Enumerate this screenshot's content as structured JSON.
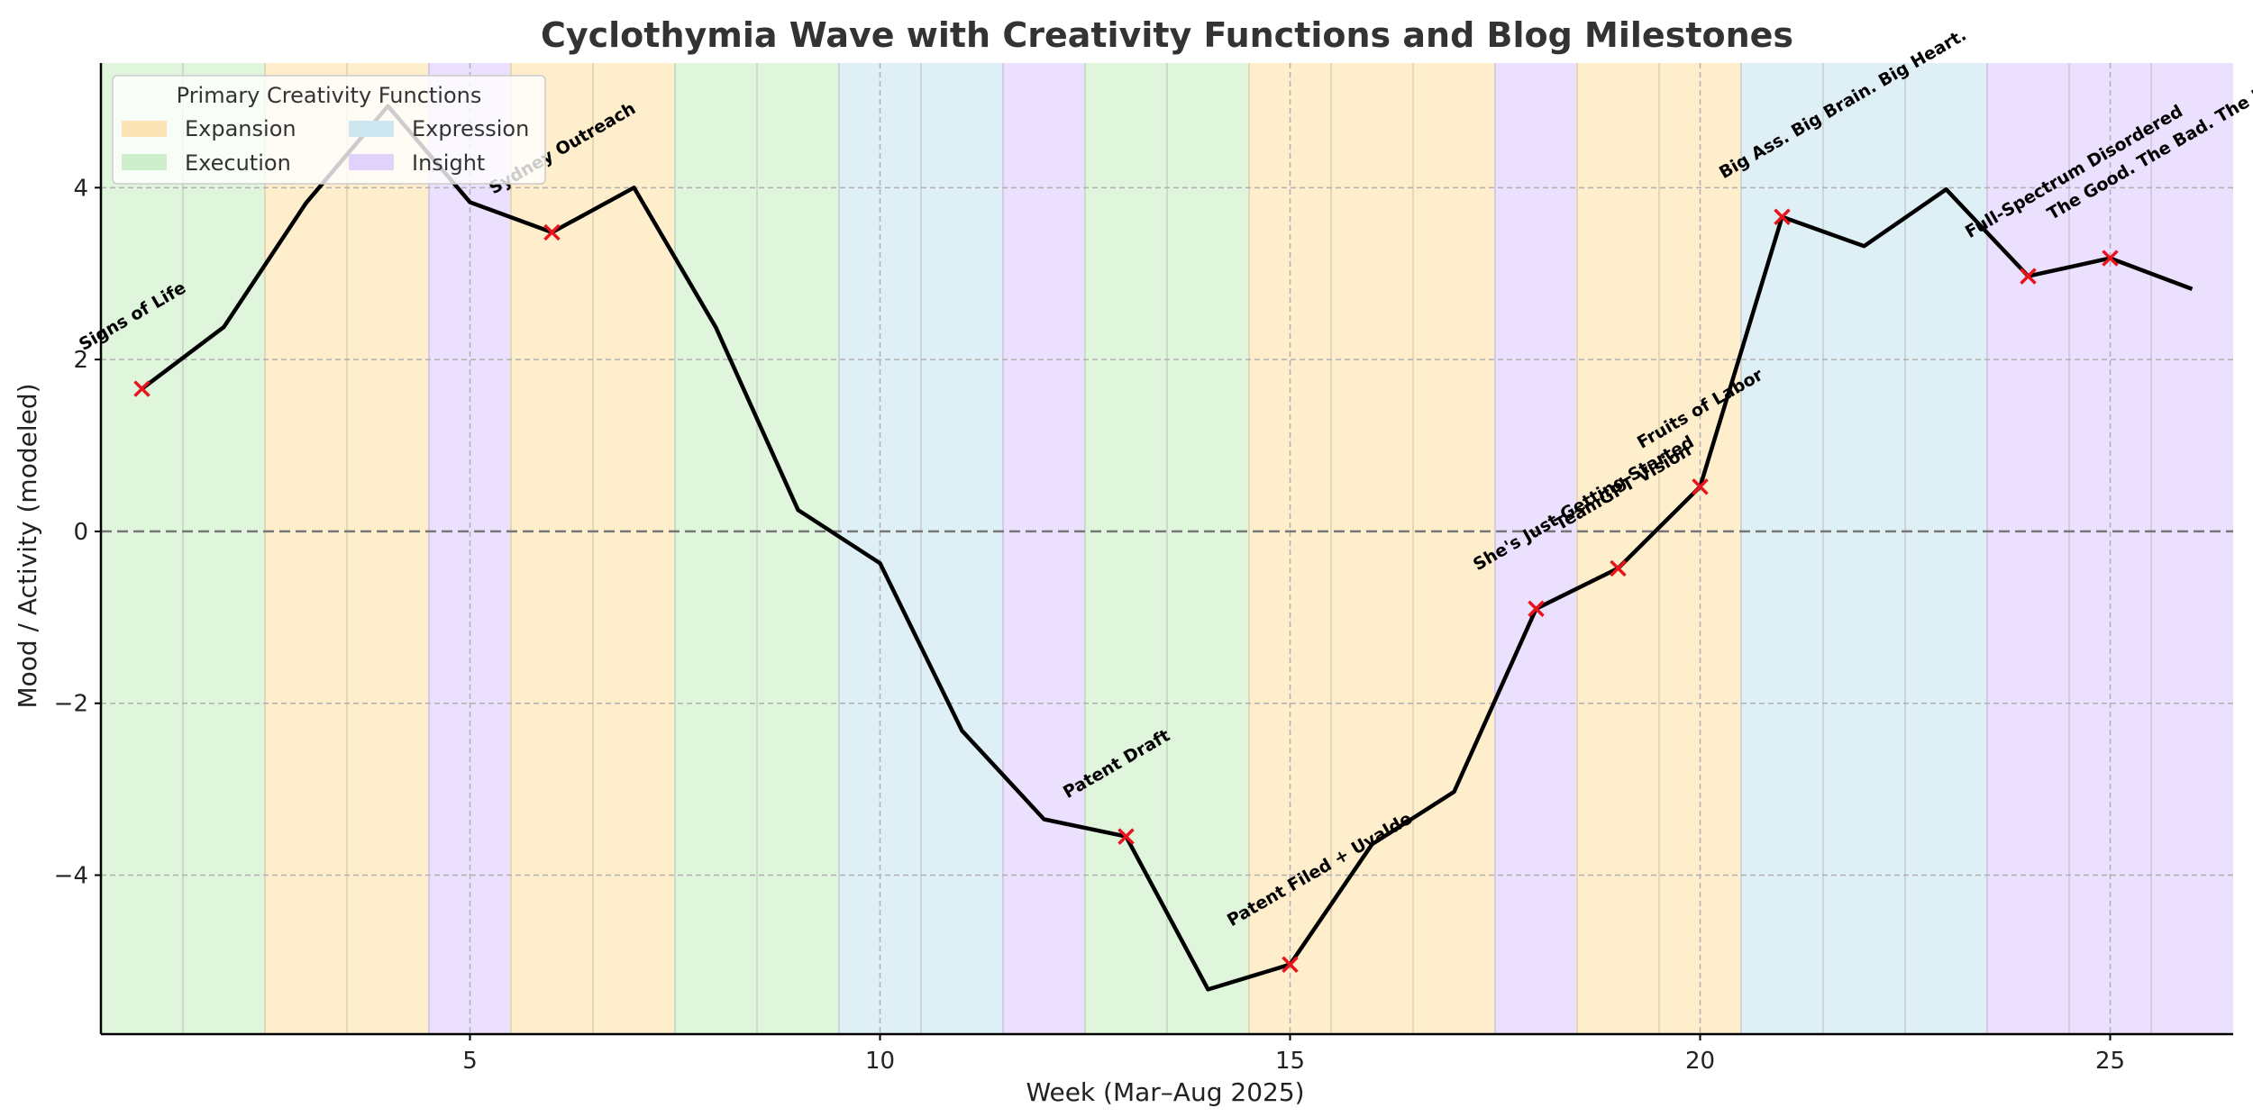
{
  "chart_data": {
    "type": "line",
    "title": "Cyclothymia Wave with Creativity Functions and Blog Milestones",
    "xlabel": "Week (Mar–Aug 2025)",
    "ylabel": "Mood / Activity (modeled)",
    "xlim": [
      0.5,
      26.5
    ],
    "ylim": [
      -5.85,
      5.45
    ],
    "xticks": [
      5,
      10,
      15,
      20,
      25
    ],
    "yticks": [
      -4,
      -2,
      0,
      2,
      4
    ],
    "ytick_labels": [
      "−4",
      "−2",
      "0",
      "2",
      "4"
    ],
    "grid": true,
    "zero_line": 0,
    "legend": {
      "title": "Primary Creativity Functions",
      "position": "top-left",
      "entries": [
        {
          "label": "Expansion",
          "color": "#fde4b4"
        },
        {
          "label": "Execution",
          "color": "#cdeecd"
        },
        {
          "label": "Expression",
          "color": "#cde6ef"
        },
        {
          "label": "Insight",
          "color": "#e0d2fb"
        }
      ]
    },
    "function_colors": {
      "Expansion": "#ffeecc",
      "Execution": "#dff5dc",
      "Expression": "#dfeff6",
      "Insight": "#ebe0fe"
    },
    "week_functions": [
      {
        "week": 1,
        "function": "Execution"
      },
      {
        "week": 2,
        "function": "Execution"
      },
      {
        "week": 3,
        "function": "Expansion"
      },
      {
        "week": 4,
        "function": "Expansion"
      },
      {
        "week": 5,
        "function": "Insight"
      },
      {
        "week": 6,
        "function": "Expansion"
      },
      {
        "week": 7,
        "function": "Expansion"
      },
      {
        "week": 8,
        "function": "Execution"
      },
      {
        "week": 9,
        "function": "Execution"
      },
      {
        "week": 10,
        "function": "Expression"
      },
      {
        "week": 11,
        "function": "Expression"
      },
      {
        "week": 12,
        "function": "Insight"
      },
      {
        "week": 13,
        "function": "Execution"
      },
      {
        "week": 14,
        "function": "Execution"
      },
      {
        "week": 15,
        "function": "Expansion"
      },
      {
        "week": 16,
        "function": "Expansion"
      },
      {
        "week": 17,
        "function": "Expansion"
      },
      {
        "week": 18,
        "function": "Insight"
      },
      {
        "week": 19,
        "function": "Expansion"
      },
      {
        "week": 20,
        "function": "Expansion"
      },
      {
        "week": 21,
        "function": "Expression"
      },
      {
        "week": 22,
        "function": "Expression"
      },
      {
        "week": 23,
        "function": "Expression"
      },
      {
        "week": 24,
        "function": "Insight"
      },
      {
        "week": 25,
        "function": "Insight"
      },
      {
        "week": 26,
        "function": "Insight"
      }
    ],
    "series": [
      {
        "name": "Mood / Activity",
        "color": "#000000",
        "x": [
          1,
          2,
          3,
          4,
          5,
          6,
          7,
          8,
          9,
          10,
          11,
          12,
          13,
          14,
          15,
          16,
          17,
          18,
          19,
          20,
          21,
          22,
          23,
          24,
          25,
          26
        ],
        "values": [
          1.66,
          2.38,
          3.82,
          4.95,
          3.83,
          3.48,
          4.0,
          2.37,
          0.25,
          -0.37,
          -2.32,
          -3.35,
          -3.55,
          -5.33,
          -5.04,
          -3.64,
          -3.03,
          -0.9,
          -0.43,
          0.52,
          3.66,
          3.32,
          3.98,
          2.97,
          3.18,
          2.82
        ]
      }
    ],
    "milestones": [
      {
        "week": 1,
        "value": 1.66,
        "label": "Signs of Life"
      },
      {
        "week": 6,
        "value": 3.48,
        "label": "Sydney Outreach"
      },
      {
        "week": 13,
        "value": -3.55,
        "label": "Patent Draft"
      },
      {
        "week": 15,
        "value": -5.04,
        "label": "Patent Filed + Uvalde"
      },
      {
        "week": 18,
        "value": -0.9,
        "label": "She's Just Getting Started"
      },
      {
        "week": 19,
        "value": -0.43,
        "label": "TeamGPT Vision"
      },
      {
        "week": 20,
        "value": 0.52,
        "label": "Fruits of Labor"
      },
      {
        "week": 21,
        "value": 3.66,
        "label": "Big Ass. Big Brain. Big Heart."
      },
      {
        "week": 24,
        "value": 2.97,
        "label": "Full-Spectrum Disordered"
      },
      {
        "week": 25,
        "value": 3.18,
        "label": "The Good. The Bad. The Ugly."
      }
    ],
    "marker_color": "#e8141c"
  }
}
